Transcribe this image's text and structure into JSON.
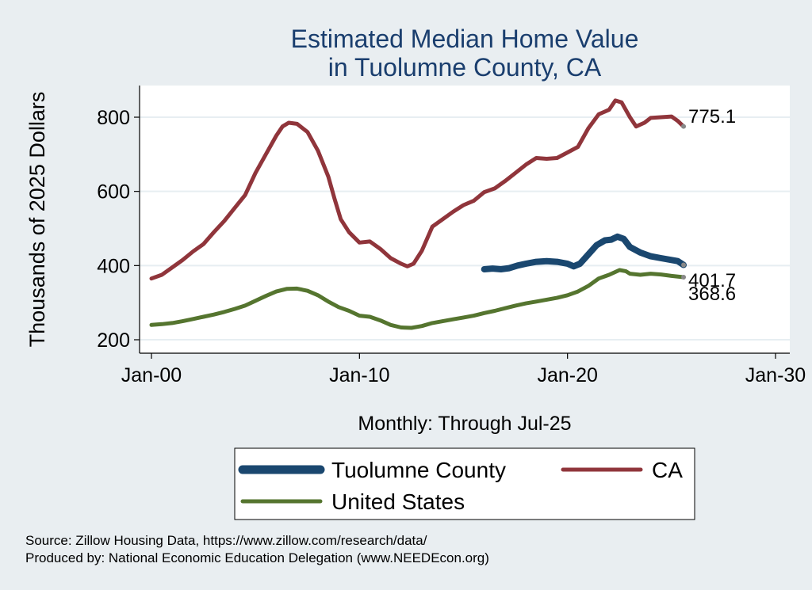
{
  "chart_data": {
    "type": "line",
    "title": [
      "Estimated Median Home Value",
      "in Tuolumne County, CA"
    ],
    "ylabel": "Thousands of 2025 Dollars",
    "xlabel": "Monthly: Through Jul-25",
    "ylim": [
      180,
      880
    ],
    "xlim": [
      2000.0,
      2030.0
    ],
    "yticks": [
      200,
      400,
      600,
      800
    ],
    "xticks": [
      {
        "x": 2000,
        "label": "Jan-00"
      },
      {
        "x": 2010,
        "label": "Jan-10"
      },
      {
        "x": 2020,
        "label": "Jan-20"
      },
      {
        "x": 2030,
        "label": "Jan-30"
      }
    ],
    "grid": true,
    "legend_position": "bottom",
    "series": [
      {
        "name": "Tuolumne County",
        "color": "#1a476f",
        "end_label": "401.7",
        "end_value": 401.7,
        "points": [
          [
            2016.0,
            390
          ],
          [
            2016.4,
            392
          ],
          [
            2016.8,
            390
          ],
          [
            2017.2,
            393
          ],
          [
            2017.6,
            400
          ],
          [
            2018.0,
            405
          ],
          [
            2018.5,
            410
          ],
          [
            2019.0,
            412
          ],
          [
            2019.5,
            410
          ],
          [
            2020.0,
            405
          ],
          [
            2020.3,
            398
          ],
          [
            2020.6,
            405
          ],
          [
            2021.0,
            430
          ],
          [
            2021.4,
            455
          ],
          [
            2021.8,
            468
          ],
          [
            2022.1,
            470
          ],
          [
            2022.4,
            478
          ],
          [
            2022.7,
            472
          ],
          [
            2023.0,
            450
          ],
          [
            2023.5,
            435
          ],
          [
            2024.0,
            425
          ],
          [
            2024.5,
            420
          ],
          [
            2025.0,
            415
          ],
          [
            2025.3,
            412
          ],
          [
            2025.58,
            401.7
          ]
        ]
      },
      {
        "name": "CA",
        "color": "#90353b",
        "end_label": "775.1",
        "end_value": 775.1,
        "points": [
          [
            2000.0,
            365
          ],
          [
            2000.5,
            375
          ],
          [
            2001.0,
            395
          ],
          [
            2001.5,
            415
          ],
          [
            2002.0,
            438
          ],
          [
            2002.5,
            458
          ],
          [
            2003.0,
            490
          ],
          [
            2003.5,
            520
          ],
          [
            2004.0,
            555
          ],
          [
            2004.5,
            590
          ],
          [
            2005.0,
            650
          ],
          [
            2005.5,
            700
          ],
          [
            2006.0,
            750
          ],
          [
            2006.3,
            775
          ],
          [
            2006.6,
            785
          ],
          [
            2007.0,
            782
          ],
          [
            2007.5,
            760
          ],
          [
            2008.0,
            710
          ],
          [
            2008.5,
            640
          ],
          [
            2008.8,
            580
          ],
          [
            2009.1,
            525
          ],
          [
            2009.5,
            490
          ],
          [
            2010.0,
            462
          ],
          [
            2010.5,
            465
          ],
          [
            2011.0,
            445
          ],
          [
            2011.5,
            420
          ],
          [
            2012.0,
            405
          ],
          [
            2012.3,
            398
          ],
          [
            2012.6,
            405
          ],
          [
            2013.0,
            440
          ],
          [
            2013.5,
            505
          ],
          [
            2014.0,
            525
          ],
          [
            2014.5,
            545
          ],
          [
            2015.0,
            563
          ],
          [
            2015.5,
            575
          ],
          [
            2016.0,
            598
          ],
          [
            2016.5,
            608
          ],
          [
            2017.0,
            628
          ],
          [
            2017.5,
            650
          ],
          [
            2018.0,
            672
          ],
          [
            2018.5,
            690
          ],
          [
            2019.0,
            688
          ],
          [
            2019.5,
            690
          ],
          [
            2020.0,
            705
          ],
          [
            2020.5,
            720
          ],
          [
            2021.0,
            770
          ],
          [
            2021.5,
            808
          ],
          [
            2022.0,
            820
          ],
          [
            2022.3,
            845
          ],
          [
            2022.6,
            840
          ],
          [
            2023.0,
            800
          ],
          [
            2023.3,
            775
          ],
          [
            2023.7,
            785
          ],
          [
            2024.0,
            798
          ],
          [
            2024.5,
            800
          ],
          [
            2025.0,
            802
          ],
          [
            2025.3,
            790
          ],
          [
            2025.58,
            775.1
          ]
        ]
      },
      {
        "name": "United States",
        "color": "#55752f",
        "end_label": "368.6",
        "end_value": 368.6,
        "points": [
          [
            2000.0,
            240
          ],
          [
            2000.5,
            242
          ],
          [
            2001.0,
            245
          ],
          [
            2001.5,
            250
          ],
          [
            2002.0,
            256
          ],
          [
            2002.5,
            262
          ],
          [
            2003.0,
            268
          ],
          [
            2003.5,
            275
          ],
          [
            2004.0,
            283
          ],
          [
            2004.5,
            292
          ],
          [
            2005.0,
            305
          ],
          [
            2005.5,
            318
          ],
          [
            2006.0,
            330
          ],
          [
            2006.5,
            337
          ],
          [
            2007.0,
            338
          ],
          [
            2007.5,
            332
          ],
          [
            2008.0,
            320
          ],
          [
            2008.5,
            303
          ],
          [
            2009.0,
            288
          ],
          [
            2009.5,
            278
          ],
          [
            2010.0,
            265
          ],
          [
            2010.5,
            262
          ],
          [
            2011.0,
            252
          ],
          [
            2011.5,
            240
          ],
          [
            2012.0,
            233
          ],
          [
            2012.5,
            232
          ],
          [
            2013.0,
            237
          ],
          [
            2013.5,
            245
          ],
          [
            2014.0,
            250
          ],
          [
            2014.5,
            255
          ],
          [
            2015.0,
            260
          ],
          [
            2015.5,
            265
          ],
          [
            2016.0,
            272
          ],
          [
            2016.5,
            278
          ],
          [
            2017.0,
            285
          ],
          [
            2017.5,
            292
          ],
          [
            2018.0,
            298
          ],
          [
            2018.5,
            303
          ],
          [
            2019.0,
            308
          ],
          [
            2019.5,
            313
          ],
          [
            2020.0,
            320
          ],
          [
            2020.5,
            330
          ],
          [
            2021.0,
            345
          ],
          [
            2021.5,
            365
          ],
          [
            2022.0,
            375
          ],
          [
            2022.5,
            388
          ],
          [
            2022.8,
            385
          ],
          [
            2023.0,
            378
          ],
          [
            2023.5,
            375
          ],
          [
            2024.0,
            378
          ],
          [
            2024.5,
            376
          ],
          [
            2025.0,
            372
          ],
          [
            2025.58,
            368.6
          ]
        ]
      }
    ],
    "footer": {
      "source": "Source: Zillow Housing Data, https://www.zillow.com/research/data/",
      "produced": "Produced by: National Economic Education Delegation (www.NEEDEcon.org)"
    }
  }
}
